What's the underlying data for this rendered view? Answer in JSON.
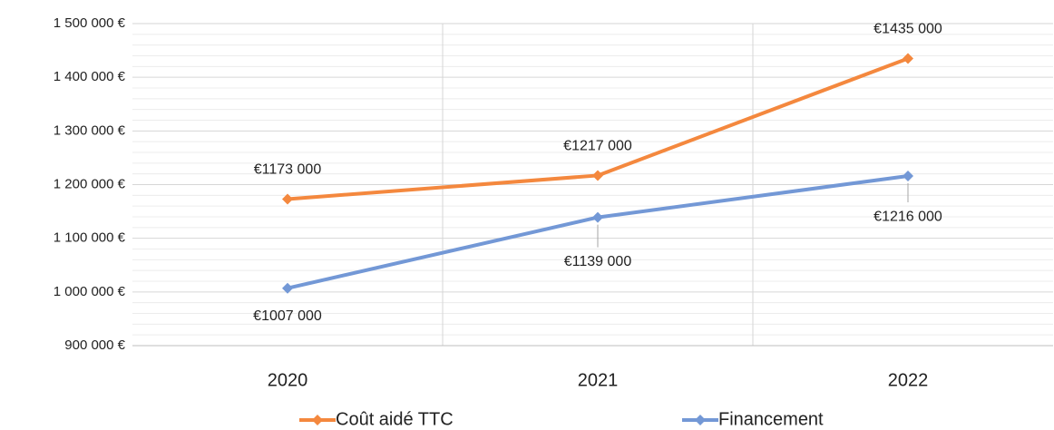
{
  "chart_data": {
    "type": "line",
    "categories": [
      "2020",
      "2021",
      "2022"
    ],
    "series": [
      {
        "name": "Coût aidé TTC",
        "color": "#F4883E",
        "values": [
          1173000,
          1217000,
          1435000
        ],
        "value_labels": [
          "€1173 000",
          "€1217 000",
          "€1435 000"
        ]
      },
      {
        "name": "Financement",
        "color": "#7398D6",
        "values": [
          1007000,
          1139000,
          1216000
        ],
        "value_labels": [
          "€1007 000",
          "€1139 000",
          "€1216 000"
        ]
      }
    ],
    "ylim": [
      900000,
      1500000
    ],
    "yticks": [
      {
        "value": 900000,
        "label": "900 000 €"
      },
      {
        "value": 1000000,
        "label": "1 000 000 €"
      },
      {
        "value": 1100000,
        "label": "1 100 000 €"
      },
      {
        "value": 1200000,
        "label": "1 200 000 €"
      },
      {
        "value": 1300000,
        "label": "1 300 000 €"
      },
      {
        "value": 1400000,
        "label": "1 400 000 €"
      },
      {
        "value": 1500000,
        "label": "1 500 000 €"
      }
    ],
    "yminor_ticks": [
      920000,
      940000,
      960000,
      980000,
      1020000,
      1040000,
      1060000,
      1080000,
      1120000,
      1140000,
      1160000,
      1180000,
      1220000,
      1240000,
      1260000,
      1280000,
      1320000,
      1340000,
      1360000,
      1380000,
      1420000,
      1440000,
      1460000,
      1480000
    ],
    "grid": true,
    "legend": "bottom"
  }
}
